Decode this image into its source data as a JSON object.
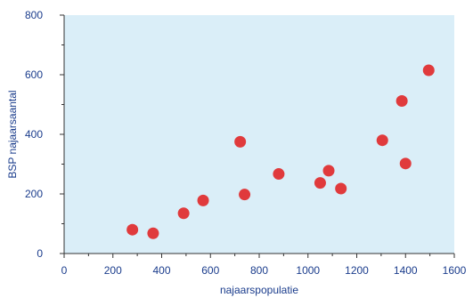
{
  "chart_data": {
    "type": "scatter",
    "xlabel": "najaarspopulatie",
    "ylabel": "BSP najaarsaantal",
    "xlim": [
      0,
      1600
    ],
    "ylim": [
      0,
      800
    ],
    "x_ticks": [
      0,
      200,
      400,
      600,
      800,
      1000,
      1200,
      1400,
      1600
    ],
    "y_ticks": [
      0,
      200,
      400,
      600,
      800
    ],
    "x_tick_labels": [
      "0",
      "200",
      "400",
      "600",
      "800",
      "1000",
      "1200",
      "1400",
      "1600"
    ],
    "y_tick_labels": [
      "0",
      "200",
      "400",
      "600",
      "800"
    ],
    "grid": false,
    "legend": "none",
    "colors": {
      "plot_background": "#daeef8",
      "point": "#e03a3c",
      "text": "#1a3c8c",
      "axis": "#333333"
    },
    "points": [
      {
        "x": 280,
        "y": 80
      },
      {
        "x": 365,
        "y": 68
      },
      {
        "x": 490,
        "y": 135
      },
      {
        "x": 570,
        "y": 178
      },
      {
        "x": 722,
        "y": 375
      },
      {
        "x": 740,
        "y": 198
      },
      {
        "x": 880,
        "y": 267
      },
      {
        "x": 1050,
        "y": 237
      },
      {
        "x": 1085,
        "y": 278
      },
      {
        "x": 1135,
        "y": 218
      },
      {
        "x": 1305,
        "y": 380
      },
      {
        "x": 1385,
        "y": 512
      },
      {
        "x": 1400,
        "y": 302
      },
      {
        "x": 1495,
        "y": 615
      }
    ]
  }
}
